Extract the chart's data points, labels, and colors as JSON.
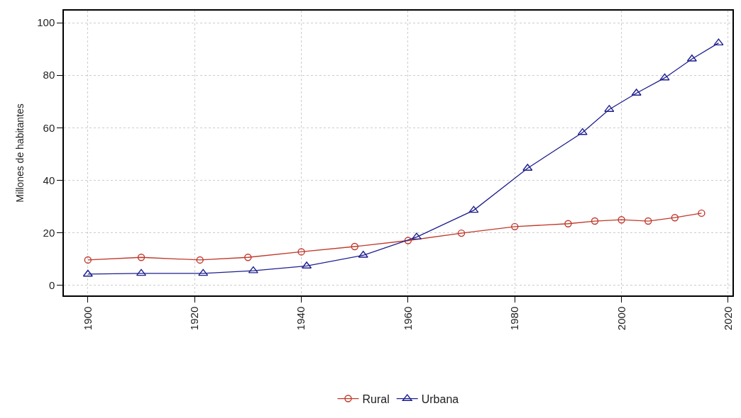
{
  "chart_data": {
    "type": "line",
    "ylabel": "Millones de habitantes",
    "xlim": [
      1895.5,
      2020.8
    ],
    "xticks": [
      1900,
      1920,
      1940,
      1960,
      1980,
      2000,
      2020
    ],
    "ylim": [
      -3.8,
      104.6
    ],
    "yticks": [
      0,
      20,
      40,
      60,
      80,
      100
    ],
    "grid": true,
    "legend": "bottom",
    "series": [
      {
        "name": "Rural",
        "color": "#c0392b",
        "marker": "circle",
        "x": [
          1900,
          1910,
          1921,
          1930,
          1940,
          1950,
          1960,
          1970,
          1980,
          1990,
          1995,
          2000,
          2005,
          2010,
          2015
        ],
        "values": [
          9.7,
          10.7,
          9.7,
          10.7,
          12.8,
          14.8,
          17.1,
          19.9,
          22.4,
          23.5,
          24.5,
          25,
          24.5,
          25.8,
          27.5
        ]
      },
      {
        "name": "Urbana",
        "color": "#1f1f8f",
        "marker": "triangle",
        "x": [
          1900,
          1910,
          1921.6,
          1931,
          1941,
          1951.6,
          1961.6,
          1972.3,
          1982.4,
          1992.7,
          1997.7,
          2002.8,
          2008.1,
          2013.2,
          2018.2
        ],
        "values": [
          4.3,
          4.6,
          4.6,
          5.6,
          7.4,
          11.5,
          18.4,
          28.6,
          44.6,
          58.2,
          67,
          73.2,
          79,
          86.2,
          92.3
        ]
      }
    ]
  }
}
